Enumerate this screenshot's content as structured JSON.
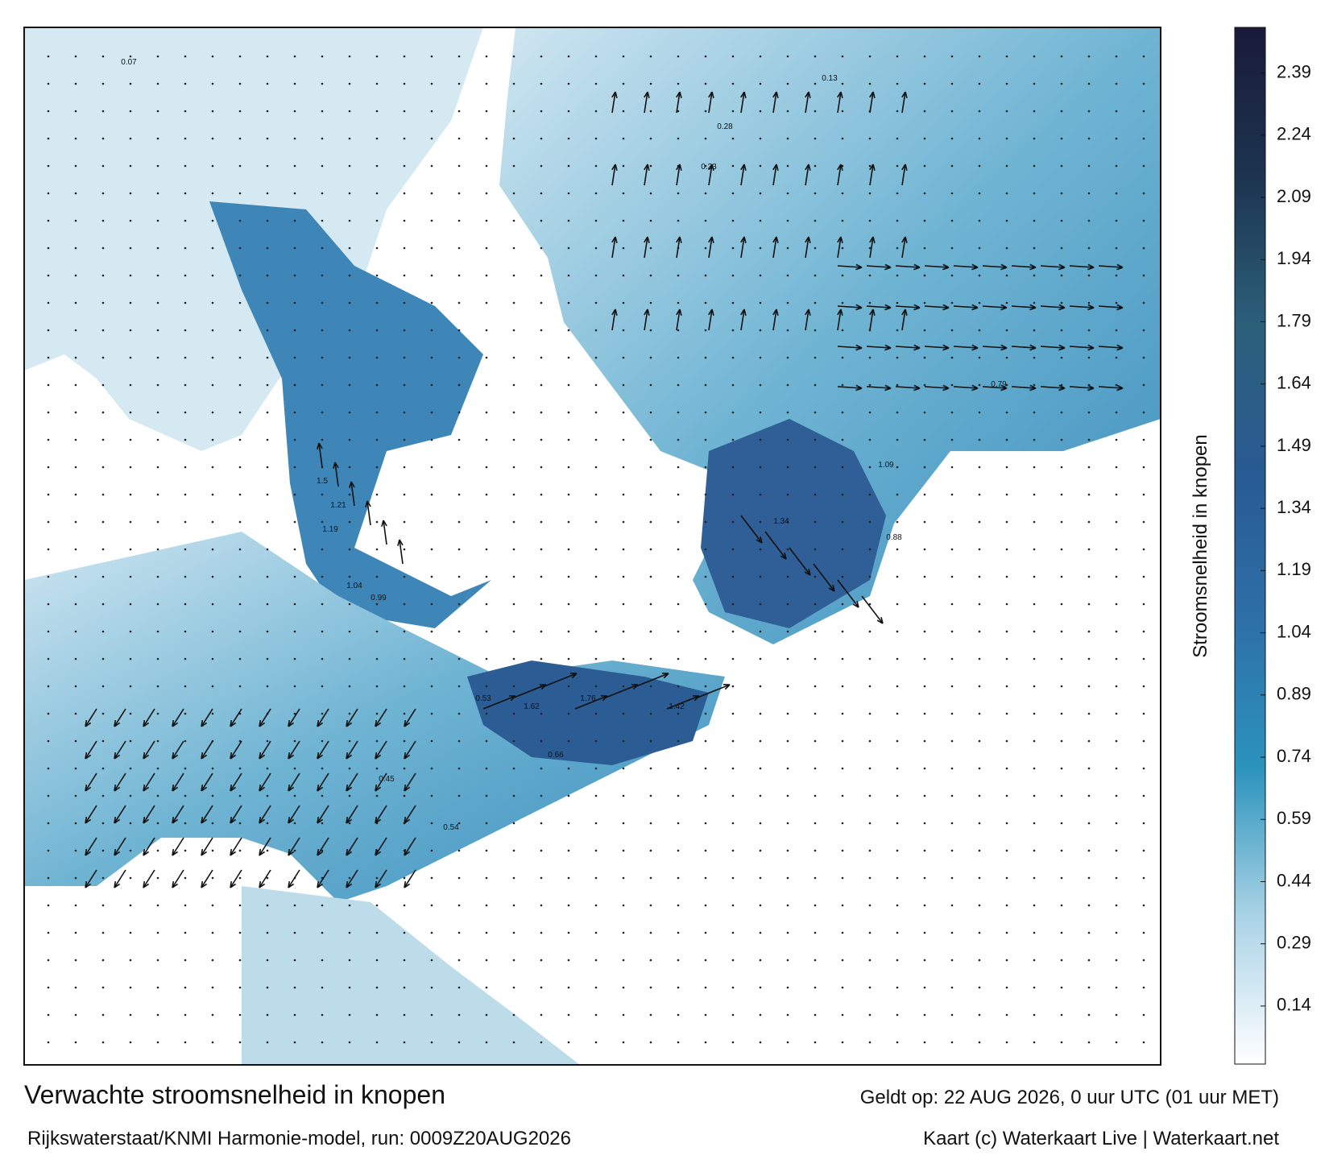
{
  "header": {
    "title": "Verwachte stroomsnelheid in knopen",
    "subtitle": "Rijkswaterstaat/KNMI Harmonie-model, run: 0009Z20AUG2026",
    "valid_time": "Geldt op: 22 AUG 2026, 0 uur UTC (01 uur MET)",
    "credit": "Kaart (c) Waterkaart Live | Waterkaart.net"
  },
  "colorbar": {
    "label": "Stroomsnelheid in knopen",
    "lim": [
      0,
      2.5
    ],
    "ticks": [
      0.14,
      0.29,
      0.44,
      0.59,
      0.74,
      0.89,
      1.04,
      1.19,
      1.34,
      1.49,
      1.64,
      1.79,
      1.94,
      2.09,
      2.24,
      2.39
    ],
    "colors": [
      "#ffffff",
      "#a9d3e6",
      "#2b93bd",
      "#2e6fa8",
      "#285a93",
      "#2c5f7a",
      "#1c3450",
      "#1a1a3a"
    ]
  },
  "map_labels": [
    "1.5",
    "1.21",
    "1.19",
    "1.04",
    "0.99",
    "1.62",
    "1.76",
    "1.42",
    "1.34",
    "1.09",
    "0.88",
    "0.79",
    "0.66",
    "0.45",
    "0.53",
    "0.54",
    "0.33",
    "0.28",
    "0.13",
    "0.07"
  ]
}
